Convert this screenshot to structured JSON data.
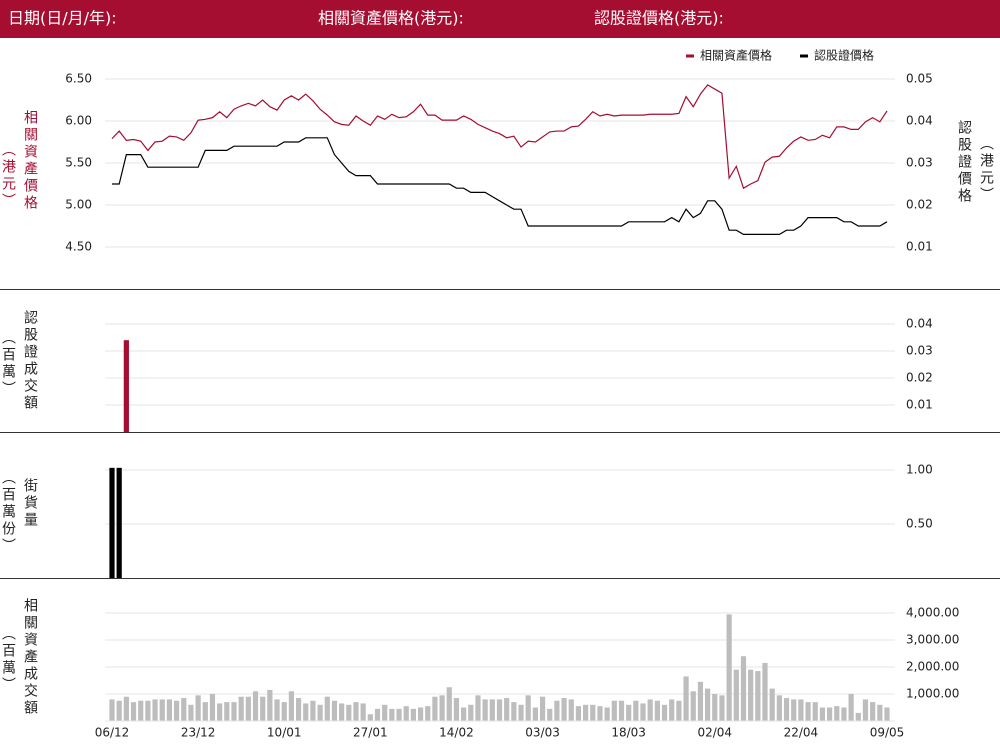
{
  "header": {
    "date_label": "日期(日/月/年):",
    "asset_label": "相關資產價格(港元):",
    "warrant_label": "認股證價格(港元):"
  },
  "chart_data": [
    {
      "type": "line",
      "ylabel": "相關資產價格",
      "ylabel_unit": "（港元）",
      "y2label": "認股證價格",
      "y2label_unit": "（港元）",
      "legend": "top-right",
      "grid": true,
      "ylim": [
        4.25,
        6.75
      ],
      "yticks": [
        {
          "value": 6.5,
          "label": "6.50"
        },
        {
          "value": 6.0,
          "label": "6.00"
        },
        {
          "value": 5.5,
          "label": "5.50"
        },
        {
          "value": 5.0,
          "label": "5.00"
        },
        {
          "value": 4.5,
          "label": "4.50"
        }
      ],
      "y2lim": [
        0.005,
        0.055
      ],
      "y2ticks": [
        0.05,
        0.04,
        0.03,
        0.02,
        0.01
      ],
      "series": [
        {
          "name": "相關資產價格",
          "color": "#a50d31",
          "values": [
            5.79,
            5.88,
            5.77,
            5.78,
            5.76,
            5.65,
            5.75,
            5.76,
            5.82,
            5.81,
            5.77,
            5.86,
            6.01,
            6.02,
            6.04,
            6.11,
            6.04,
            6.14,
            6.18,
            6.21,
            6.18,
            6.25,
            6.17,
            6.13,
            6.25,
            6.3,
            6.25,
            6.32,
            6.24,
            6.14,
            6.07,
            5.99,
            5.96,
            5.95,
            6.06,
            6.0,
            5.95,
            6.06,
            6.02,
            6.08,
            6.04,
            6.05,
            6.11,
            6.2,
            6.07,
            6.07,
            6.01,
            6.01,
            6.01,
            6.06,
            6.02,
            5.96,
            5.92,
            5.88,
            5.85,
            5.8,
            5.82,
            5.69,
            5.76,
            5.75,
            5.81,
            5.87,
            5.88,
            5.88,
            5.93,
            5.94,
            6.02,
            6.11,
            6.06,
            6.08,
            6.06,
            6.07,
            6.07,
            6.07,
            6.07,
            6.08,
            6.08,
            6.08,
            6.08,
            6.09,
            6.29,
            6.17,
            6.32,
            6.43,
            6.38,
            6.33,
            5.32,
            5.46,
            5.2,
            5.25,
            5.29,
            5.51,
            5.57,
            5.58,
            5.68,
            5.76,
            5.81,
            5.77,
            5.78,
            5.83,
            5.8,
            5.93,
            5.93,
            5.9,
            5.9,
            5.99,
            6.04,
            5.99,
            6.12
          ]
        },
        {
          "name": "認股證價格",
          "color": "#000000",
          "axis": "y2",
          "values": [
            0.025,
            0.025,
            0.032,
            0.032,
            0.032,
            0.029,
            0.029,
            0.029,
            0.029,
            0.029,
            0.029,
            0.029,
            0.029,
            0.033,
            0.033,
            0.033,
            0.033,
            0.034,
            0.034,
            0.034,
            0.034,
            0.034,
            0.034,
            0.034,
            0.035,
            0.035,
            0.035,
            0.036,
            0.036,
            0.036,
            0.036,
            0.032,
            0.03,
            0.028,
            0.027,
            0.027,
            0.027,
            0.025,
            0.025,
            0.025,
            0.025,
            0.025,
            0.025,
            0.025,
            0.025,
            0.025,
            0.025,
            0.025,
            0.024,
            0.024,
            0.023,
            0.023,
            0.023,
            0.022,
            0.021,
            0.02,
            0.019,
            0.019,
            0.015,
            0.015,
            0.015,
            0.015,
            0.015,
            0.015,
            0.015,
            0.015,
            0.015,
            0.015,
            0.015,
            0.015,
            0.015,
            0.015,
            0.016,
            0.016,
            0.016,
            0.016,
            0.016,
            0.016,
            0.017,
            0.016,
            0.019,
            0.017,
            0.018,
            0.021,
            0.021,
            0.019,
            0.014,
            0.014,
            0.013,
            0.013,
            0.013,
            0.013,
            0.013,
            0.013,
            0.014,
            0.014,
            0.015,
            0.017,
            0.017,
            0.017,
            0.017,
            0.017,
            0.016,
            0.016,
            0.015,
            0.015,
            0.015,
            0.015,
            0.016
          ]
        }
      ]
    },
    {
      "type": "bar",
      "ylabel": "認股證成交額",
      "ylabel_unit": "（百萬）",
      "color": "#a50d31",
      "grid": true,
      "ylim": [
        0,
        0.045
      ],
      "yticks": [
        0.04,
        0.03,
        0.02,
        0.01
      ],
      "values": [
        0,
        0,
        0.034,
        0,
        0,
        0,
        0,
        0,
        0,
        0,
        0,
        0,
        0,
        0,
        0,
        0,
        0,
        0,
        0,
        0,
        0,
        0,
        0,
        0,
        0,
        0,
        0,
        0,
        0,
        0,
        0,
        0,
        0,
        0,
        0,
        0,
        0,
        0,
        0,
        0,
        0,
        0,
        0,
        0,
        0,
        0,
        0,
        0,
        0,
        0,
        0,
        0,
        0,
        0,
        0,
        0,
        0,
        0,
        0,
        0,
        0,
        0,
        0,
        0,
        0,
        0,
        0,
        0,
        0,
        0,
        0,
        0,
        0,
        0,
        0,
        0,
        0,
        0,
        0,
        0,
        0,
        0,
        0,
        0,
        0,
        0,
        0,
        0,
        0,
        0,
        0,
        0,
        0,
        0,
        0,
        0,
        0,
        0,
        0,
        0,
        0,
        0,
        0,
        0,
        0,
        0,
        0,
        0,
        0
      ]
    },
    {
      "type": "bar",
      "ylabel": "街貨量",
      "ylabel_unit": "（百萬份）",
      "color": "#000000",
      "grid": true,
      "ylim": [
        0,
        1.1
      ],
      "yticks": [
        {
          "value": 1.0,
          "label": "1.00"
        },
        {
          "value": 0.5,
          "label": "0.50"
        }
      ],
      "values": [
        1.02,
        1.02,
        0,
        0,
        0,
        0,
        0,
        0,
        0,
        0,
        0,
        0,
        0,
        0,
        0,
        0,
        0,
        0,
        0,
        0,
        0,
        0,
        0,
        0,
        0,
        0,
        0,
        0,
        0,
        0,
        0,
        0,
        0,
        0,
        0,
        0,
        0,
        0,
        0,
        0,
        0,
        0,
        0,
        0,
        0,
        0,
        0,
        0,
        0,
        0,
        0,
        0,
        0,
        0,
        0,
        0,
        0,
        0,
        0,
        0,
        0,
        0,
        0,
        0,
        0,
        0,
        0,
        0,
        0,
        0,
        0,
        0,
        0,
        0,
        0,
        0,
        0,
        0,
        0,
        0,
        0,
        0,
        0,
        0,
        0,
        0,
        0,
        0,
        0,
        0,
        0,
        0,
        0,
        0,
        0,
        0,
        0,
        0,
        0,
        0,
        0,
        0,
        0,
        0,
        0,
        0,
        0,
        0,
        0
      ]
    },
    {
      "type": "bar",
      "ylabel": "相關資產成交額",
      "ylabel_unit": "（百萬）",
      "color": "#bdbdbd",
      "grid": true,
      "ylim": [
        0,
        4500
      ],
      "yticks": [
        {
          "value": 4000,
          "label": "4,000.00"
        },
        {
          "value": 3000,
          "label": "3,000.00"
        },
        {
          "value": 2000,
          "label": "2,000.00"
        },
        {
          "value": 1000,
          "label": "1,000.00"
        }
      ],
      "categories": [
        "06/12",
        null,
        null,
        null,
        null,
        null,
        null,
        null,
        null,
        null,
        null,
        null,
        "23/12",
        null,
        null,
        null,
        null,
        null,
        null,
        null,
        null,
        null,
        null,
        null,
        "10/01",
        null,
        null,
        null,
        null,
        null,
        null,
        null,
        null,
        null,
        null,
        null,
        "27/01",
        null,
        null,
        null,
        null,
        null,
        null,
        null,
        null,
        null,
        null,
        null,
        "14/02",
        null,
        null,
        null,
        null,
        null,
        null,
        null,
        null,
        null,
        null,
        null,
        "03/03",
        null,
        null,
        null,
        null,
        null,
        null,
        null,
        null,
        null,
        null,
        null,
        "18/03",
        null,
        null,
        null,
        null,
        null,
        null,
        null,
        null,
        null,
        null,
        null,
        "02/04",
        null,
        null,
        null,
        null,
        null,
        null,
        null,
        null,
        null,
        null,
        null,
        "22/04",
        null,
        null,
        null,
        null,
        null,
        null,
        null,
        null,
        null,
        null,
        null,
        "09/05"
      ],
      "values": [
        800,
        750,
        900,
        700,
        750,
        750,
        800,
        800,
        800,
        750,
        850,
        600,
        950,
        700,
        1000,
        650,
        700,
        700,
        900,
        900,
        1100,
        900,
        1150,
        800,
        700,
        1100,
        850,
        650,
        750,
        600,
        900,
        750,
        650,
        600,
        700,
        650,
        250,
        450,
        600,
        450,
        450,
        550,
        450,
        500,
        550,
        900,
        950,
        1250,
        850,
        500,
        600,
        950,
        800,
        800,
        800,
        850,
        700,
        600,
        950,
        500,
        900,
        450,
        750,
        850,
        800,
        550,
        600,
        600,
        550,
        500,
        750,
        750,
        600,
        750,
        650,
        800,
        750,
        600,
        800,
        750,
        1650,
        1100,
        1450,
        1200,
        1000,
        950,
        3950,
        1900,
        2400,
        1900,
        1850,
        2150,
        1200,
        950,
        850,
        800,
        800,
        700,
        700,
        500,
        500,
        550,
        500,
        1000,
        300,
        800,
        700,
        600,
        500
      ]
    }
  ]
}
